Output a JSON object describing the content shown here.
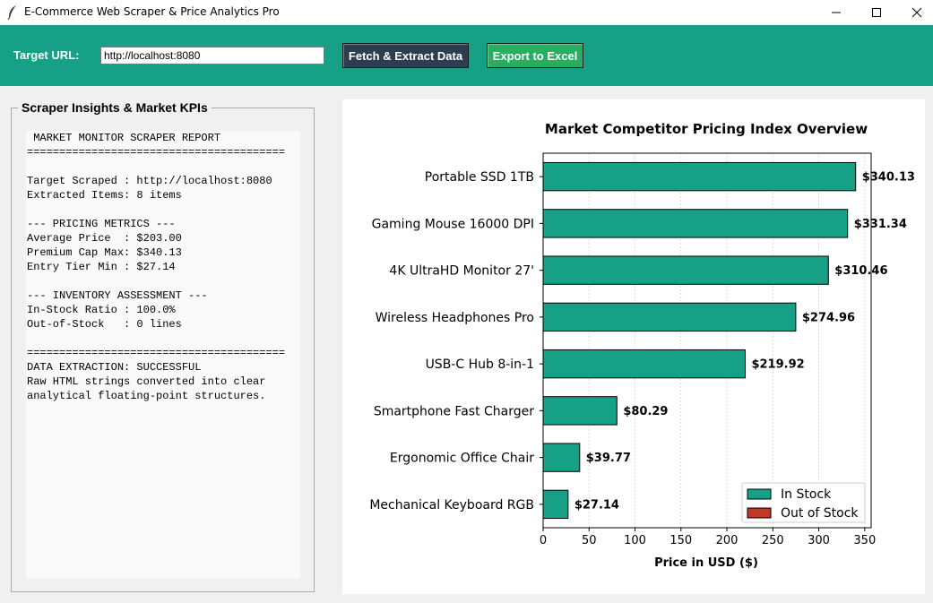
{
  "window": {
    "title": "E-Commerce Web Scraper & Price Analytics Pro"
  },
  "toolbar": {
    "url_label": "Target URL:",
    "url_value": "http://localhost:8080",
    "fetch_label": "Fetch & Extract Data",
    "export_label": "Export to Excel"
  },
  "kpi_panel": {
    "title": "Scraper Insights & Market KPIs",
    "lines": [
      " MARKET MONITOR SCRAPER REPORT",
      "========================================",
      "",
      "Target Scraped : http://localhost:8080",
      "Extracted Items: 8 items",
      "",
      "--- PRICING METRICS ---",
      "Average Price  : $203.00",
      "Premium Cap Max: $340.13",
      "Entry Tier Min : $27.14",
      "",
      "--- INVENTORY ASSESSMENT ---",
      "In-Stock Ratio : 100.0%",
      "Out-of-Stock   : 0 lines",
      "",
      "========================================",
      "DATA EXTRACTION: SUCCESSFUL",
      "Raw HTML strings converted into clear",
      "analytical floating-point structures."
    ]
  },
  "chart_data": {
    "type": "bar",
    "orientation": "horizontal",
    "title": "Market Competitor Pricing Index Overview",
    "xlabel": "Price in USD ($)",
    "ylabel": "",
    "xlim": [
      0,
      357
    ],
    "xticks": [
      0,
      50,
      100,
      150,
      200,
      250,
      300,
      350
    ],
    "grid": "x-dotted",
    "categories": [
      "Portable SSD 1TB",
      "Gaming Mouse 16000 DPI",
      "4K UltraHD Monitor 27'",
      "Wireless Headphones Pro",
      "USB-C Hub 8-in-1",
      "Smartphone Fast Charger",
      "Ergonomic Office Chair",
      "Mechanical Keyboard RGB"
    ],
    "values": [
      340.13,
      331.34,
      310.46,
      274.96,
      219.92,
      80.29,
      39.77,
      27.14
    ],
    "value_labels": [
      "$340.13",
      "$331.34",
      "$310.46",
      "$274.96",
      "$219.92",
      "$80.29",
      "$39.77",
      "$27.14"
    ],
    "status": [
      "In Stock",
      "In Stock",
      "In Stock",
      "In Stock",
      "In Stock",
      "In Stock",
      "In Stock",
      "In Stock"
    ],
    "legend": {
      "placement": "lower-right",
      "entries": [
        {
          "label": "In Stock",
          "color": "#16a085"
        },
        {
          "label": "Out of Stock",
          "color": "#c0392b"
        }
      ]
    },
    "colors": {
      "in_stock": "#16a085",
      "out_of_stock": "#c0392b"
    }
  }
}
